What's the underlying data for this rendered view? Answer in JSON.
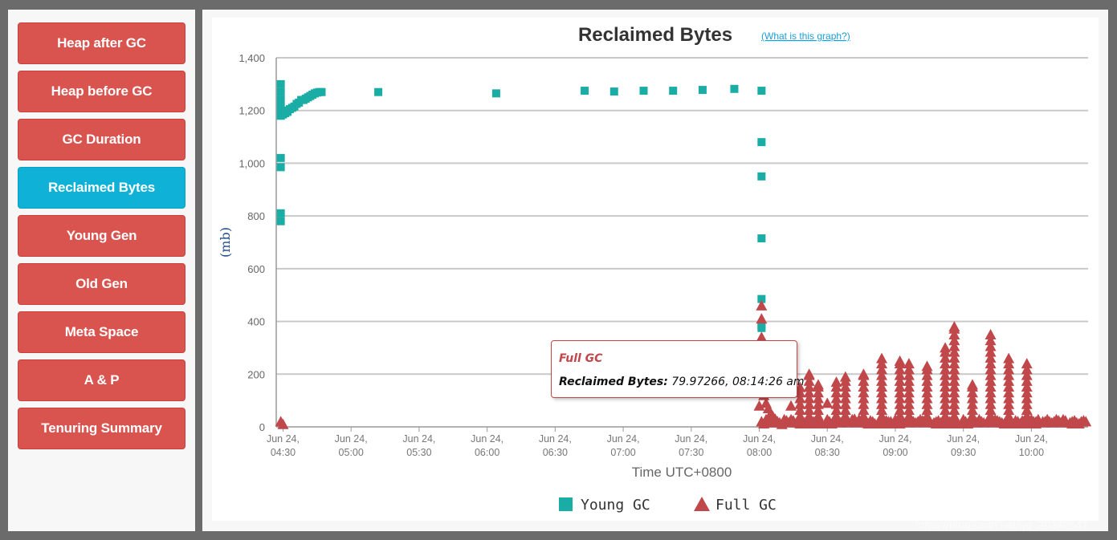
{
  "sidebar": {
    "items": [
      {
        "label": "Heap after GC",
        "active": false
      },
      {
        "label": "Heap before GC",
        "active": false
      },
      {
        "label": "GC Duration",
        "active": false
      },
      {
        "label": "Reclaimed Bytes",
        "active": true
      },
      {
        "label": "Young Gen",
        "active": false
      },
      {
        "label": "Old Gen",
        "active": false
      },
      {
        "label": "Meta Space",
        "active": false
      },
      {
        "label": "A & P",
        "active": false
      },
      {
        "label": "Tenuring Summary",
        "active": false
      }
    ]
  },
  "colors": {
    "button": "#d9534f",
    "button_active": "#0fb1d6",
    "young_gc": "#1aada5",
    "full_gc": "#c0474a"
  },
  "help_link": "(What is this graph?)",
  "watermark": "https://blog.csdn.net/qq_20340547",
  "tooltip": {
    "title": "Full GC",
    "key": "Reclaimed Bytes:",
    "value": "79.97266, 08:14:26 am"
  },
  "chart_data": {
    "type": "scatter",
    "title": "Reclaimed Bytes",
    "xlabel": "Time UTC+0800",
    "ylabel": "(mb)",
    "xlim": [
      "04:27",
      "10:25"
    ],
    "ylim": [
      0,
      1400
    ],
    "yticks": [
      0,
      200,
      400,
      600,
      800,
      1000,
      1200,
      1400
    ],
    "ytick_labels": [
      "0",
      "200",
      "400",
      "600",
      "800",
      "1,000",
      "1,200",
      "1,400"
    ],
    "xticks": [
      "04:30",
      "05:00",
      "05:30",
      "06:00",
      "06:30",
      "07:00",
      "07:30",
      "08:00",
      "08:30",
      "09:00",
      "09:30",
      "10:00"
    ],
    "xtick_labels": [
      [
        "Jun 24,",
        "04:30"
      ],
      [
        "Jun 24,",
        "05:00"
      ],
      [
        "Jun 24,",
        "05:30"
      ],
      [
        "Jun 24,",
        "06:00"
      ],
      [
        "Jun 24,",
        "06:30"
      ],
      [
        "Jun 24,",
        "07:00"
      ],
      [
        "Jun 24,",
        "07:30"
      ],
      [
        "Jun 24,",
        "08:00"
      ],
      [
        "Jun 24,",
        "08:30"
      ],
      [
        "Jun 24,",
        "09:00"
      ],
      [
        "Jun 24,",
        "09:30"
      ],
      [
        "Jun 24,",
        "10:00"
      ]
    ],
    "grid": true,
    "legend_position": "bottom-center",
    "series": [
      {
        "name": "Young GC",
        "marker": "square",
        "x": [
          "04:29",
          "04:29",
          "04:29",
          "04:29",
          "04:29",
          "04:29",
          "04:29",
          "04:29",
          "04:29",
          "04:30",
          "04:30",
          "04:31",
          "04:32",
          "04:33",
          "04:34",
          "04:35",
          "04:36",
          "04:37",
          "04:38",
          "04:39",
          "04:40",
          "04:41",
          "04:42",
          "04:43",
          "04:44",
          "04:45",
          "04:46",
          "04:47",
          "05:12",
          "06:04",
          "06:43",
          "06:56",
          "07:09",
          "07:22",
          "07:35",
          "07:49",
          "08:01",
          "08:01",
          "08:01",
          "08:01",
          "08:01",
          "08:01",
          "08:01"
        ],
        "y": [
          1300,
          1270,
          1240,
          1210,
          1180,
          1020,
          985,
          810,
          780,
          1200,
          1185,
          1190,
          1195,
          1205,
          1210,
          1215,
          1225,
          1230,
          1240,
          1240,
          1245,
          1250,
          1255,
          1260,
          1265,
          1268,
          1270,
          1270,
          1270,
          1265,
          1275,
          1272,
          1275,
          1275,
          1278,
          1282,
          1275,
          1080,
          950,
          715,
          485,
          385,
          375
        ]
      },
      {
        "name": "Full GC",
        "marker": "triangle",
        "x": [
          "04:29",
          "04:30",
          "08:00",
          "08:01",
          "08:01",
          "08:01",
          "08:01",
          "08:01",
          "08:01",
          "08:01",
          "08:02",
          "08:03",
          "08:04",
          "08:05",
          "08:06",
          "08:07",
          "08:08",
          "08:10",
          "08:12",
          "08:14",
          "08:18",
          "08:22",
          "08:26",
          "08:30",
          "08:34",
          "08:38",
          "08:42",
          "08:46",
          "08:50",
          "08:54",
          "08:58",
          "09:02",
          "09:06",
          "09:10",
          "09:14",
          "09:18",
          "09:22",
          "09:26",
          "09:30",
          "09:34",
          "09:38",
          "09:42",
          "09:46",
          "09:50",
          "09:54",
          "09:58",
          "10:02",
          "10:06",
          "10:10",
          "10:14",
          "10:18",
          "10:22"
        ],
        "y": [
          20,
          10,
          80,
          460,
          410,
          340,
          290,
          250,
          200,
          150,
          120,
          90,
          70,
          50,
          40,
          30,
          20,
          10,
          20,
          79.97,
          150,
          200,
          160,
          90,
          170,
          190,
          30,
          200,
          20,
          260,
          20,
          250,
          240,
          20,
          230,
          20,
          300,
          380,
          20,
          160,
          20,
          350,
          20,
          260,
          20,
          240,
          20,
          20,
          20,
          20,
          20,
          20
        ]
      }
    ]
  }
}
